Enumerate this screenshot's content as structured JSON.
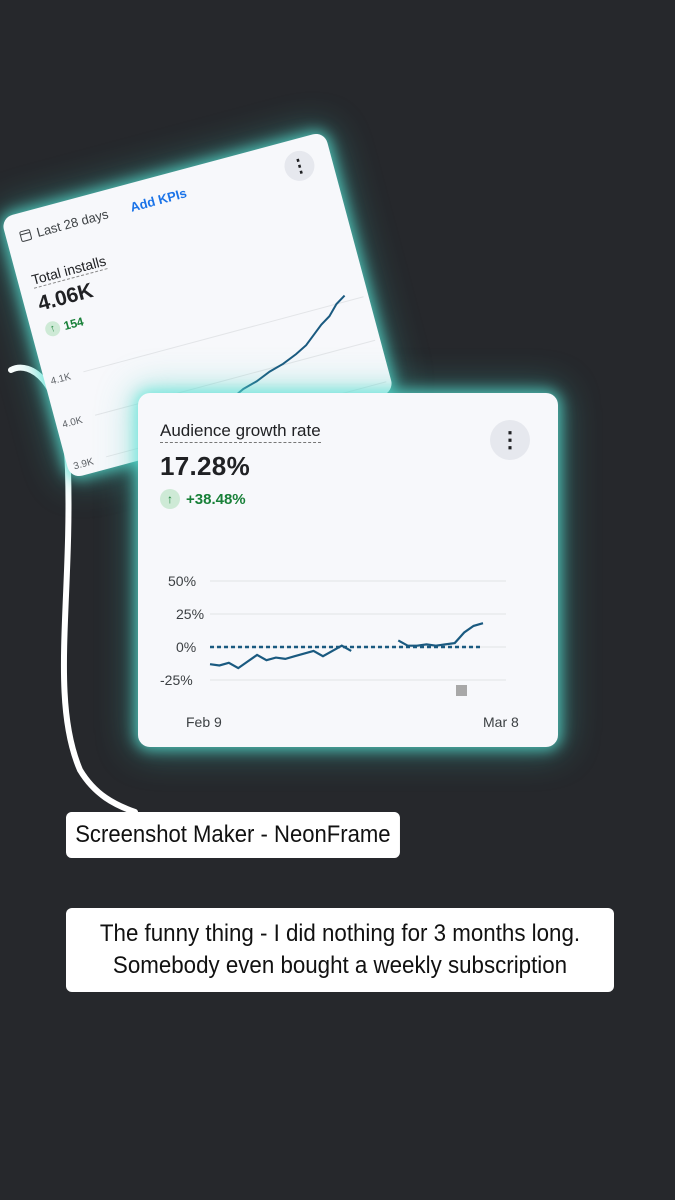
{
  "back_card": {
    "period": "Last 28 days",
    "add_kpis": "Add KPIs",
    "metric_label": "Total installs",
    "metric_value": "4.06K",
    "delta": "154",
    "y_ticks": [
      "4.1K",
      "4.0K",
      "3.9K"
    ]
  },
  "front_card": {
    "metric_label": "Audience growth rate",
    "metric_value": "17.28%",
    "delta": "+38.48%",
    "chart_data": {
      "type": "line",
      "y_ticks": [
        "50%",
        "25%",
        "0%",
        "-25%"
      ],
      "x_ticks": [
        "Feb 9",
        "Mar 8"
      ],
      "ylim": [
        -25,
        50
      ],
      "series": [
        {
          "values": [
            -13,
            -14,
            -12,
            -16,
            -11,
            -6,
            -10,
            -8,
            -9,
            -7,
            -5,
            -3,
            -7,
            -3,
            1,
            -3,
            null,
            null,
            null,
            null,
            5,
            1,
            1,
            2,
            1,
            2,
            3,
            11,
            16,
            18
          ]
        }
      ],
      "baseline": 0,
      "colors": {
        "line": "#1a5a80",
        "baseline": "#1a5a80"
      }
    }
  },
  "captions": {
    "app_name": "Screenshot Maker - NeonFrame",
    "line1": "The funny thing - I did nothing for 3 months long.",
    "line2": "Somebody even bought a weekly subscription"
  }
}
